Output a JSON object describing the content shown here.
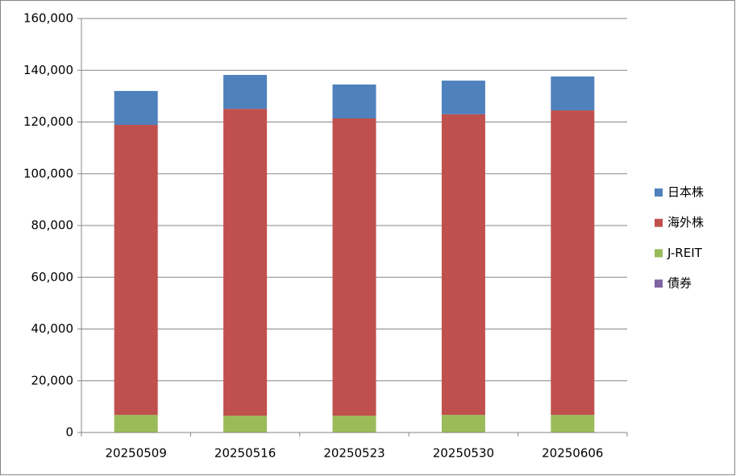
{
  "chart_data": {
    "type": "stacked_bar",
    "categories": [
      "20250509",
      "20250516",
      "20250523",
      "20250530",
      "20250606"
    ],
    "series": [
      {
        "name": "日本株",
        "color": "#4f81bd",
        "values": [
          13100,
          13100,
          13100,
          13000,
          13100
        ]
      },
      {
        "name": "海外株",
        "color": "#c0504d",
        "values": [
          112100,
          118600,
          114900,
          116200,
          117700
        ]
      },
      {
        "name": "J-REIT",
        "color": "#9bbb59",
        "values": [
          6800,
          6500,
          6500,
          6800,
          6800
        ]
      },
      {
        "name": "債券",
        "color": "#8064a2",
        "values": [
          0,
          0,
          0,
          0,
          0
        ]
      }
    ],
    "ylim": [
      0,
      160000
    ],
    "yticks": [
      0,
      {
        "value": 20000,
        "label": "20,000"
      },
      {
        "value": 40000,
        "label": "40,000"
      },
      {
        "value": 60000,
        "label": "60,000"
      },
      {
        "value": 80000,
        "label": "80,000"
      },
      {
        "value": 100000,
        "label": "100,000"
      },
      {
        "value": 120000,
        "label": "120,000"
      },
      {
        "value": 140000,
        "label": "140,000"
      },
      {
        "value": 160000,
        "label": "160,000"
      }
    ],
    "grid": true,
    "legend": "right"
  }
}
